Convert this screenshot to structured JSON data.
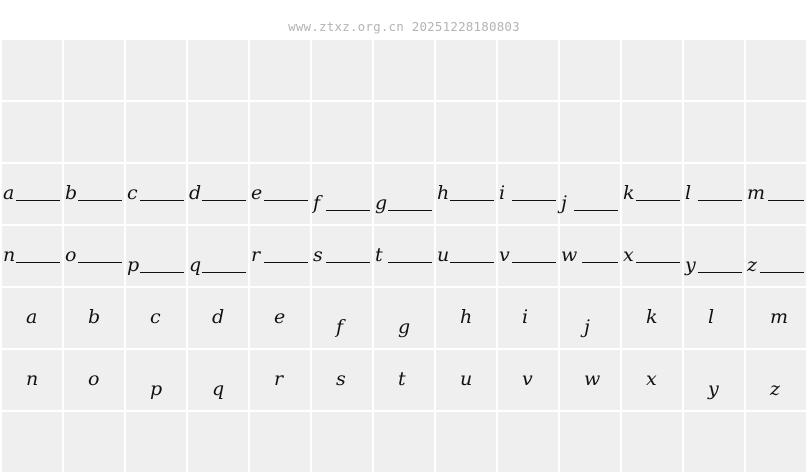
{
  "header": {
    "watermark": "www.ztxz.org.cn 20251228180803"
  },
  "specimen": {
    "empty_rows_top": 2,
    "empty_rows_bottom": 1,
    "connected_rows": [
      [
        "a",
        "b",
        "c",
        "d",
        "e",
        "f",
        "g",
        "h",
        "i",
        "j",
        "k",
        "l",
        "m"
      ],
      [
        "n",
        "o",
        "p",
        "q",
        "r",
        "s",
        "t",
        "u",
        "v",
        "w",
        "x",
        "y",
        "z"
      ]
    ],
    "standalone_rows": [
      [
        "a",
        "b",
        "c",
        "d",
        "e",
        "f",
        "g",
        "h",
        "i",
        "j",
        "k",
        "l",
        "m"
      ],
      [
        "n",
        "o",
        "p",
        "q",
        "r",
        "s",
        "t",
        "u",
        "v",
        "w",
        "x",
        "y",
        "z"
      ]
    ],
    "colors": {
      "cell": "#efefef",
      "ink": "#111111",
      "watermark": "#b4b4b4"
    }
  }
}
